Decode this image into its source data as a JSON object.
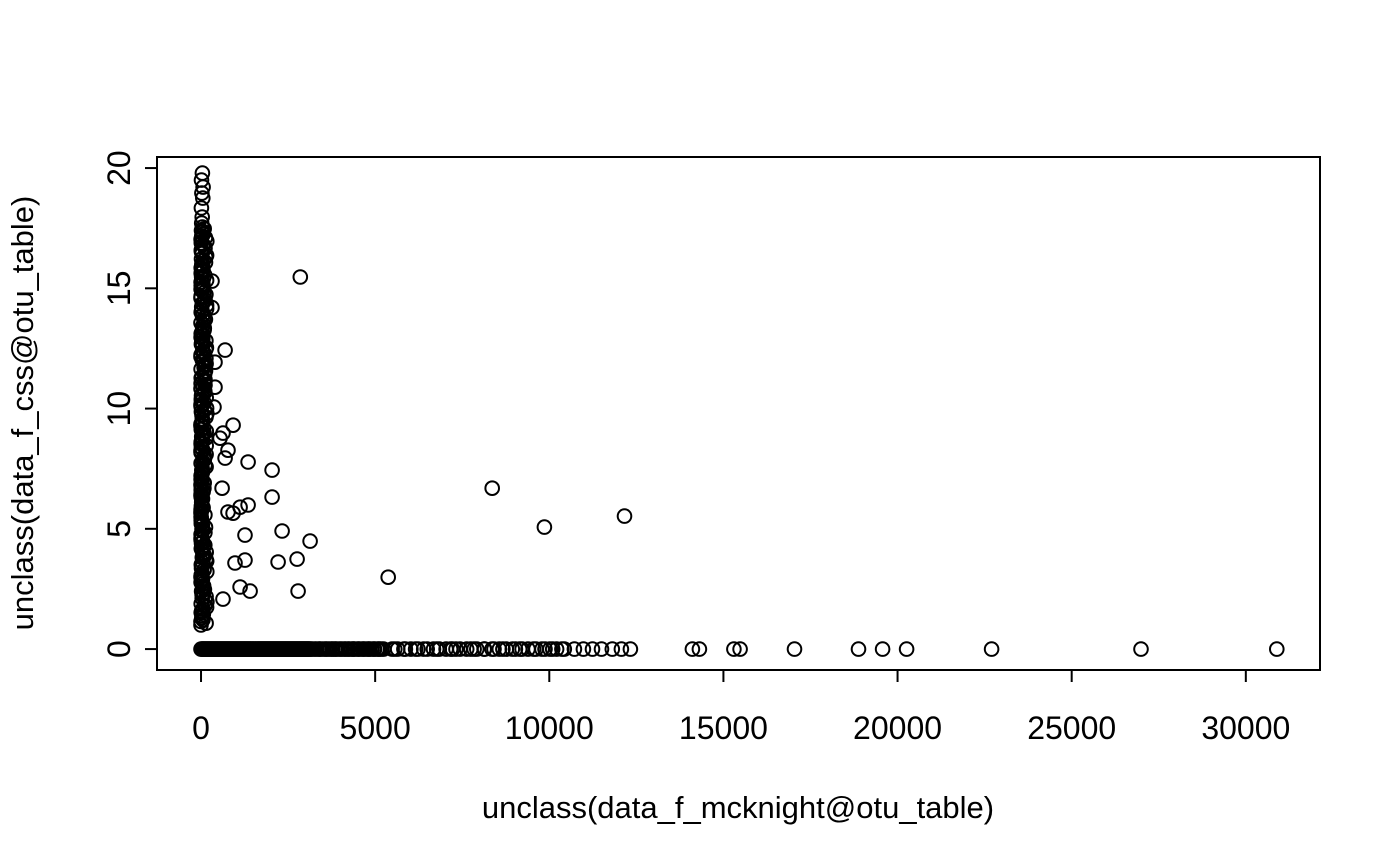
{
  "chart_data": {
    "type": "scatter",
    "title": "",
    "xlabel": "unclass(data_f_mcknight@otu_table)",
    "ylabel": "unclass(data_f_css@otu_table)",
    "x_ticks": [
      0,
      5000,
      10000,
      15000,
      20000,
      25000,
      30000
    ],
    "y_ticks": [
      0,
      5,
      10,
      15,
      20
    ],
    "xlim": [
      -1264,
      32130
    ],
    "ylim": [
      -0.87,
      20.46
    ],
    "data_x_range": [
      0,
      30890
    ],
    "data_y_range": [
      0,
      19.8
    ],
    "grid": "off",
    "legend": "none",
    "marker": {
      "shape": "open-circle",
      "color_hex": "#000000",
      "radius_px": 6.8,
      "stroke_px": 2
    },
    "points": [
      [
        40,
        19.79
      ],
      [
        15,
        19.5
      ],
      [
        60,
        19.21
      ],
      [
        25,
        18.96
      ],
      [
        50,
        18.75
      ],
      [
        10,
        18.34
      ],
      [
        35,
        17.96
      ],
      [
        20,
        17.71
      ],
      [
        45,
        17.34
      ],
      [
        15,
        17.09
      ],
      [
        316,
        15.3
      ],
      [
        316,
        14.2
      ],
      [
        2850,
        15.47
      ],
      [
        690,
        12.43
      ],
      [
        402,
        11.93
      ],
      [
        402,
        10.89
      ],
      [
        374,
        10.06
      ],
      [
        920,
        9.31
      ],
      [
        632,
        8.98
      ],
      [
        546,
        8.77
      ],
      [
        776,
        8.27
      ],
      [
        690,
        7.94
      ],
      [
        1351,
        7.78
      ],
      [
        2041,
        7.44
      ],
      [
        604,
        6.69
      ],
      [
        2041,
        6.32
      ],
      [
        1121,
        5.9
      ],
      [
        1351,
        5.99
      ],
      [
        776,
        5.7
      ],
      [
        920,
        5.65
      ],
      [
        1264,
        4.74
      ],
      [
        2328,
        4.91
      ],
      [
        3133,
        4.49
      ],
      [
        1264,
        3.7
      ],
      [
        977,
        3.58
      ],
      [
        2213,
        3.62
      ],
      [
        2759,
        3.74
      ],
      [
        1121,
        2.58
      ],
      [
        1408,
        2.41
      ],
      [
        2788,
        2.41
      ],
      [
        632,
        2.08
      ],
      [
        5374,
        2.99
      ],
      [
        8360,
        6.69
      ],
      [
        9860,
        5.07
      ],
      [
        12160,
        5.53
      ]
    ],
    "zero_row_points": [
      10430,
      10720,
      10980,
      11240,
      11500,
      11810,
      12070,
      12330,
      14110,
      14310,
      15300,
      15480,
      17040,
      18880,
      19570,
      20260,
      22700,
      26990,
      30890
    ],
    "zero_row_runs": [
      {
        "from": 0,
        "to": 3130,
        "count": 150,
        "jitter": 0
      },
      {
        "from": 3180,
        "to": 5230,
        "count": 45,
        "jitter": 20
      },
      {
        "from": 5430,
        "to": 10350,
        "count": 42,
        "jitter": 60
      }
    ],
    "column_run": {
      "x_base": 0,
      "x_jitter_max": 170,
      "y_from": 1.0,
      "y_to": 17.55,
      "count": 225
    }
  }
}
